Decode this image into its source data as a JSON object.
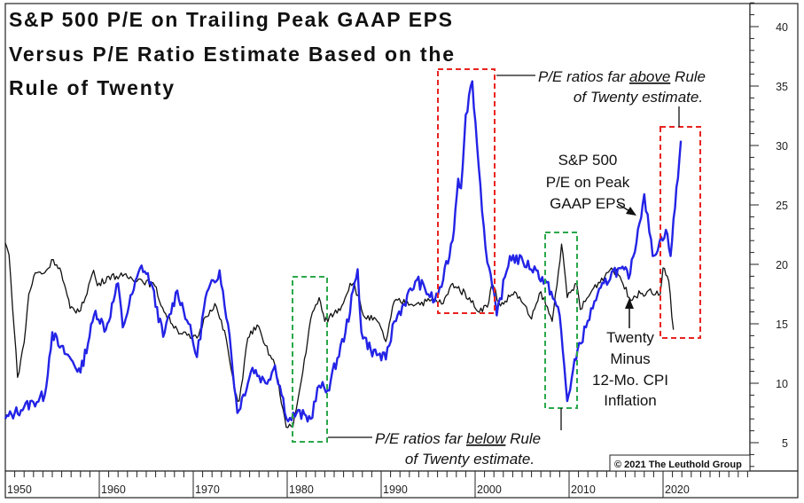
{
  "chart_data": {
    "type": "line",
    "title": "S&P 500 P/E on Trailing Peak GAAP EPS Versus P/E Ratio Estimate Based on the Rule of Twenty",
    "title_lines": [
      "S&P 500 P/E on Trailing Peak GAAP EPS",
      "Versus P/E Ratio Estimate Based on the",
      "Rule of Twenty"
    ],
    "xlim": [
      1950,
      2029
    ],
    "ylim": [
      3,
      42
    ],
    "x_ticks": [
      "1950",
      "1960",
      "1970",
      "1980",
      "1990",
      "2000",
      "2010",
      "2020"
    ],
    "y_ticks": [
      "5",
      "10",
      "15",
      "20",
      "25",
      "30",
      "35",
      "40"
    ],
    "y_axis_side": "right",
    "grid": false,
    "series": [
      {
        "name": "S&P 500 P/E on Peak GAAP EPS",
        "color": "#2323e6",
        "x": [
          1950,
          1951,
          1952,
          1953,
          1954.2,
          1955,
          1955.8,
          1957,
          1958,
          1959.6,
          1960.7,
          1962,
          1962.5,
          1963.5,
          1964.5,
          1965.5,
          1966.8,
          1968.3,
          1969.5,
          1970.4,
          1971.3,
          1972.8,
          1973.7,
          1974.7,
          1976.3,
          1977.7,
          1978.7,
          1980.1,
          1981,
          1982.5,
          1983.4,
          1984.3,
          1986.2,
          1987.5,
          1987.9,
          1988.9,
          1990.5,
          1991.4,
          1993.8,
          1995.7,
          1996.6,
          1997.6,
          1998.2,
          1998.5,
          1999,
          1999.7,
          2000.2,
          2001.1,
          2001.5,
          2002.3,
          2003.7,
          2005.1,
          2006.5,
          2008.1,
          2009,
          2009.8,
          2010.9,
          2011.8,
          2012.7,
          2014.7,
          2016.5,
          2018,
          2018.9,
          2020.3,
          2020.8,
          2021.9
        ],
        "y": [
          7.0,
          7.5,
          8.0,
          8.4,
          9.0,
          14.3,
          13.0,
          12.0,
          10.9,
          16.1,
          14.5,
          18.4,
          14.7,
          17.5,
          19.9,
          18.5,
          13.9,
          17.8,
          15.0,
          12.2,
          17.2,
          19.5,
          15.0,
          7.5,
          11.3,
          10.0,
          11.5,
          6.8,
          7.5,
          7.0,
          9.8,
          9.4,
          14.3,
          19.6,
          14.3,
          12.8,
          12.0,
          15.2,
          18.7,
          16.9,
          18.7,
          22.0,
          27.2,
          26.4,
          32.6,
          35.4,
          30.1,
          21.4,
          19.7,
          15.7,
          20.7,
          20.2,
          19.5,
          17.7,
          15.7,
          8.5,
          12.8,
          14.7,
          16.9,
          19.5,
          19.2,
          25.9,
          20.7,
          22.9,
          20.7,
          30.4
        ]
      },
      {
        "name": "Twenty Minus 12-Mo. CPI Inflation",
        "color": "#111111",
        "x": [
          1950,
          1950.4,
          1951.3,
          1952,
          1952.5,
          1953.2,
          1954.2,
          1955.1,
          1955.8,
          1956.9,
          1958,
          1959.4,
          1959.8,
          1961,
          1962.5,
          1964.5,
          1965.9,
          1966.9,
          1968.3,
          1969.7,
          1970.4,
          1971.3,
          1972.3,
          1973.5,
          1974.4,
          1974.9,
          1975.8,
          1976.8,
          1977.5,
          1978.7,
          1979.9,
          1980.6,
          1981.5,
          1982.5,
          1983.4,
          1984,
          1985.8,
          1986.7,
          1987.2,
          1988.1,
          1989.6,
          1990.5,
          1991.4,
          1993.8,
          1995.7,
          1996.6,
          1997.6,
          1999.4,
          2000.1,
          2001.3,
          2001.8,
          2002.7,
          2004.2,
          2005.1,
          2006,
          2007,
          2008.2,
          2009.2,
          2009.8,
          2010.8,
          2011.2,
          2012.6,
          2014.5,
          2015.4,
          2016.4,
          2018.3,
          2019.7,
          2020,
          2020.6,
          2021.1
        ],
        "y": [
          21.8,
          20.8,
          10.5,
          13.4,
          17.5,
          19.3,
          19.3,
          20.4,
          19.7,
          16.3,
          16.1,
          19.5,
          18.2,
          19.0,
          19.0,
          18.7,
          18.2,
          16.0,
          14.5,
          13.8,
          13.8,
          15.6,
          16.7,
          13.8,
          9.3,
          8.5,
          13.8,
          14.9,
          13.4,
          11.5,
          6.3,
          6.3,
          10.2,
          15.4,
          17.2,
          15.2,
          16.5,
          18.4,
          18.2,
          15.7,
          15.2,
          13.5,
          16.9,
          16.7,
          17.0,
          16.7,
          18.4,
          17.2,
          16.2,
          16.4,
          18.4,
          16.5,
          17.7,
          16.7,
          15.4,
          17.7,
          15.2,
          21.7,
          17.2,
          18.4,
          16.2,
          18.0,
          19.7,
          19.0,
          17.2,
          17.7,
          17.5,
          19.7,
          18.6,
          14.5
        ]
      }
    ],
    "annotations": {
      "above": {
        "prefix": "P/E ratios far ",
        "emph": "above",
        "suffix": " Rule",
        "line2": "of Twenty estimate."
      },
      "below": {
        "prefix": "P/E ratios far ",
        "emph": "below",
        "suffix": " Rule",
        "line2": "of Twenty estimate."
      },
      "pe_label": [
        "S&P 500",
        "P/E on Peak",
        "GAAP EPS"
      ],
      "rule_label": [
        "Twenty",
        "Minus",
        "12-Mo. CPI",
        "Inflation"
      ],
      "highlight_colors": {
        "above": "#e8231f",
        "below": "#2aa84a"
      }
    },
    "copyright": "© 2021 The Leuthold Group"
  }
}
